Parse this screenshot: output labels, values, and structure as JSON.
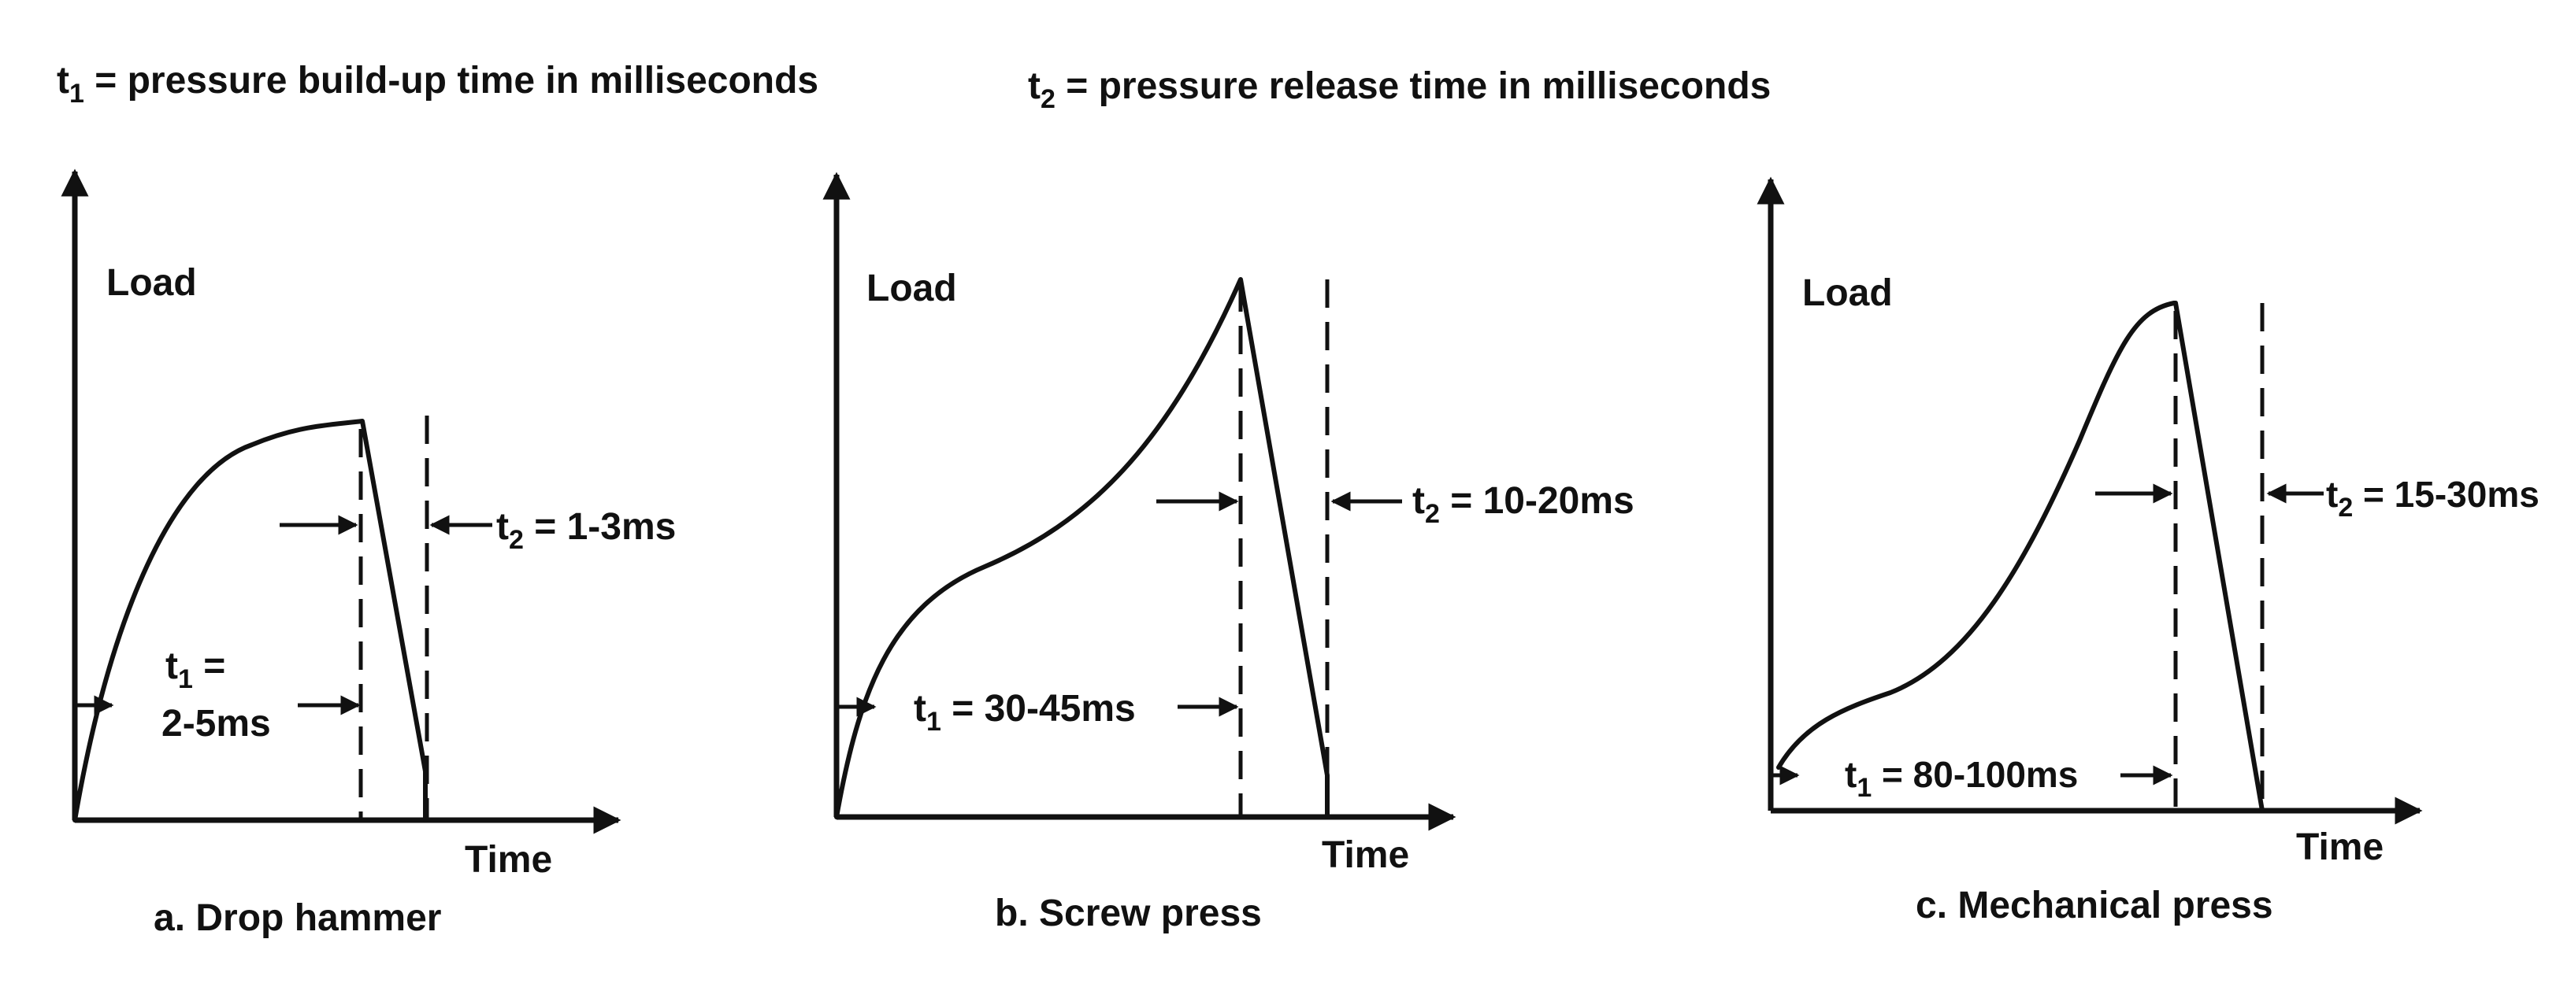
{
  "legend": {
    "t1": {
      "symbol": "t",
      "sub": "1",
      "text": " = pressure build-up time in milliseconds"
    },
    "t2": {
      "symbol": "t",
      "sub": "2",
      "text": " = pressure release time in milliseconds"
    }
  },
  "panels": [
    {
      "id": "a",
      "caption": "a. Drop hammer",
      "ylabel": "Load",
      "xlabel": "Time",
      "t1_line1": {
        "symbol": "t",
        "sub": "1",
        "text": " ="
      },
      "t1_line2": "2-5ms",
      "t2": {
        "symbol": "t",
        "sub": "2",
        "text": " = 1-3ms"
      }
    },
    {
      "id": "b",
      "caption": "b. Screw press",
      "ylabel": "Load",
      "xlabel": "Time",
      "t1": {
        "symbol": "t",
        "sub": "1",
        "text": " = 30-45ms"
      },
      "t2": {
        "symbol": "t",
        "sub": "2",
        "text": " = 10-20ms"
      }
    },
    {
      "id": "c",
      "caption": "c. Mechanical press",
      "ylabel": "Load",
      "xlabel": "Time",
      "t1": {
        "symbol": "t",
        "sub": "1",
        "text": " = 80-100ms"
      },
      "t2": {
        "symbol": "t",
        "sub": "2",
        "text": " = 15-30ms"
      }
    }
  ]
}
